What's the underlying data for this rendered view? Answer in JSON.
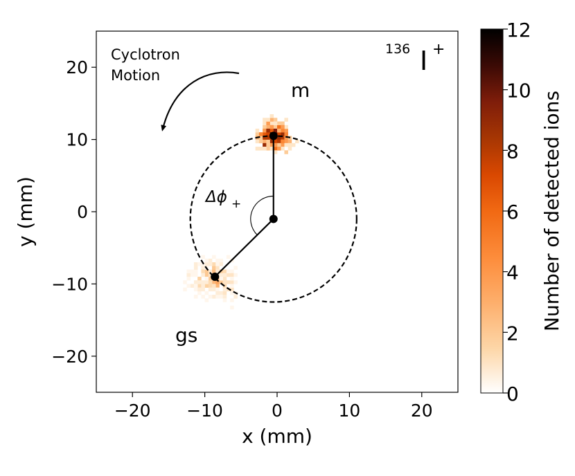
{
  "chart_data": {
    "type": "heatmap",
    "title": "",
    "xlabel": "x (mm)",
    "ylabel": "y (mm)",
    "xlim": [
      -25,
      25
    ],
    "ylim": [
      -25,
      25
    ],
    "xticks": [
      -20,
      -10,
      0,
      10,
      20
    ],
    "yticks": [
      -20,
      -10,
      0,
      10,
      20
    ],
    "xtick_labels": [
      "−20",
      "−10",
      "0",
      "10",
      "20"
    ],
    "ytick_labels": [
      "−20",
      "−10",
      "0",
      "10",
      "20"
    ],
    "grid": false,
    "colorbar": {
      "label": "Number of detected ions",
      "range": [
        0,
        12
      ],
      "ticks": [
        0,
        2,
        4,
        6,
        8,
        10,
        12
      ],
      "tick_labels": [
        "0",
        "2",
        "4",
        "6",
        "8",
        "10",
        "12"
      ],
      "colormap": [
        "#ffffff",
        "#fdd7a9",
        "#fdae6b",
        "#fd8d3c",
        "#f16913",
        "#d94801",
        "#a63603",
        "#7f1d0a",
        "#3b0a05",
        "#000000"
      ]
    },
    "clusters": [
      {
        "name": "m",
        "center": [
          -0.5,
          10.5
        ],
        "sigma": [
          1.6,
          1.3
        ],
        "peak": 11,
        "count": 320
      },
      {
        "name": "gs",
        "center": [
          -8.7,
          -9.2
        ],
        "sigma": [
          2.2,
          1.7
        ],
        "peak": 3,
        "count": 260
      }
    ],
    "circle": {
      "center": [
        -0.5,
        -1.0
      ],
      "radius": 11.5
    },
    "rays": [
      {
        "from": [
          -0.5,
          -1.0
        ],
        "to": [
          -0.5,
          10.5
        ]
      },
      {
        "from": [
          -0.5,
          -1.0
        ],
        "to": [
          -8.6,
          -9.0
        ]
      }
    ],
    "points": [
      [
        -0.5,
        -1.0
      ],
      [
        -0.5,
        10.5
      ],
      [
        -8.6,
        -9.0
      ]
    ],
    "annotations": {
      "isotope_mass": "136",
      "isotope_symbol": "I",
      "isotope_charge": "+",
      "cyclotron_line1": "Cyclotron",
      "cyclotron_line2": "Motion",
      "label_m": "m",
      "label_gs": "gs",
      "delta_phi": "Δϕ",
      "delta_phi_sub": "+"
    }
  }
}
